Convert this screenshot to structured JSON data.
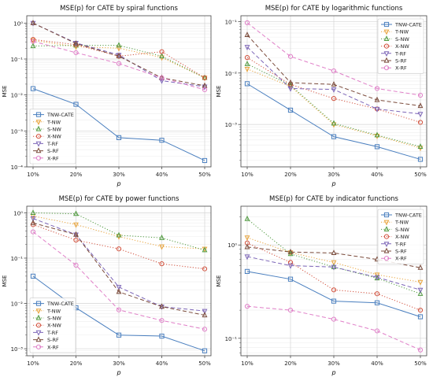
{
  "figure": {
    "series_styles": [
      {
        "name": "TNW-CATE",
        "color": "#4a7fbf",
        "dash": "solid",
        "marker": "square"
      },
      {
        "name": "T-NW",
        "color": "#e8a33a",
        "dash": "dotted",
        "marker": "tri-down"
      },
      {
        "name": "S-NW",
        "color": "#4f9a3e",
        "dash": "dotted",
        "marker": "tri-up"
      },
      {
        "name": "X-NW",
        "color": "#d2503c",
        "dash": "dotted",
        "marker": "circle"
      },
      {
        "name": "T-RF",
        "color": "#7d66b8",
        "dash": "dashed",
        "marker": "tri-down"
      },
      {
        "name": "S-RF",
        "color": "#7a4a3a",
        "dash": "dashed",
        "marker": "tri-up"
      },
      {
        "name": "X-RF",
        "color": "#e07fc8",
        "dash": "dashed",
        "marker": "circle"
      }
    ]
  },
  "chart_data": [
    {
      "type": "line",
      "title": "MSE(p) for CATE by spiral functions",
      "xlabel": "p",
      "ylabel": "MSE",
      "yscale": "log",
      "ylim": [
        0.0001,
        1.6
      ],
      "yticks": [
        {
          "v": 0.0001,
          "label": "10⁻⁴"
        },
        {
          "v": 0.001,
          "label": "10⁻³"
        },
        {
          "v": 0.01,
          "label": "10⁻²"
        },
        {
          "v": 0.1,
          "label": "10⁻¹"
        },
        {
          "v": 1,
          "label": "10⁰"
        }
      ],
      "categories": [
        "10%",
        "20%",
        "30%",
        "40%",
        "50%"
      ],
      "legend": "lower-left",
      "grid": true,
      "series": [
        {
          "name": "TNW-CATE",
          "values": [
            0.015,
            0.0055,
            0.00065,
            0.00055,
            0.00015
          ]
        },
        {
          "name": "T-NW",
          "values": [
            0.33,
            0.22,
            0.2,
            0.11,
            0.03
          ]
        },
        {
          "name": "S-NW",
          "values": [
            0.23,
            0.24,
            0.24,
            0.12,
            0.03
          ]
        },
        {
          "name": "X-NW",
          "values": [
            0.35,
            0.25,
            0.12,
            0.16,
            0.03
          ]
        },
        {
          "name": "T-RF",
          "values": [
            1.0,
            0.28,
            0.13,
            0.025,
            0.017
          ]
        },
        {
          "name": "S-RF",
          "values": [
            1.0,
            0.27,
            0.12,
            0.03,
            0.018
          ]
        },
        {
          "name": "X-RF",
          "values": [
            0.31,
            0.15,
            0.075,
            0.03,
            0.014
          ]
        }
      ]
    },
    {
      "type": "line",
      "title": "MSE(p) for CATE by logarithmic functions",
      "xlabel": "p",
      "ylabel": "MSE",
      "yscale": "log",
      "ylim": [
        0.00015,
        0.13
      ],
      "yticks": [
        {
          "v": 0.001,
          "label": "10⁻³"
        },
        {
          "v": 0.01,
          "label": "10⁻²"
        },
        {
          "v": 0.1,
          "label": "10⁻¹"
        }
      ],
      "categories": [
        "10%",
        "20%",
        "30%",
        "40%",
        "50%"
      ],
      "legend": "top-right",
      "grid": true,
      "series": [
        {
          "name": "TNW-CATE",
          "values": [
            0.0062,
            0.0019,
            0.00058,
            0.00037,
            0.00021
          ]
        },
        {
          "name": "T-NW",
          "values": [
            0.012,
            0.0055,
            0.001,
            0.0006,
            0.00035
          ]
        },
        {
          "name": "S-NW",
          "values": [
            0.015,
            0.0058,
            0.00105,
            0.00062,
            0.00037
          ]
        },
        {
          "name": "X-NW",
          "values": [
            0.02,
            0.006,
            0.0032,
            0.002,
            0.0011
          ]
        },
        {
          "name": "T-RF",
          "values": [
            0.032,
            0.005,
            0.0048,
            0.002,
            0.0016
          ]
        },
        {
          "name": "S-RF",
          "values": [
            0.055,
            0.0065,
            0.006,
            0.003,
            0.0023
          ]
        },
        {
          "name": "X-RF",
          "values": [
            0.095,
            0.021,
            0.011,
            0.005,
            0.0037
          ]
        }
      ]
    },
    {
      "type": "line",
      "title": "MSE(p) for CATE by power functions",
      "xlabel": "p",
      "ylabel": "MSE",
      "yscale": "log",
      "ylim": [
        0.0007,
        1.4
      ],
      "yticks": [
        {
          "v": 0.001,
          "label": "10⁻³"
        },
        {
          "v": 0.01,
          "label": "10⁻²"
        },
        {
          "v": 0.1,
          "label": "10⁻¹"
        },
        {
          "v": 1,
          "label": "10⁰"
        }
      ],
      "categories": [
        "10%",
        "20%",
        "30%",
        "40%",
        "50%"
      ],
      "legend": "lower-left",
      "grid": true,
      "series": [
        {
          "name": "TNW-CATE",
          "values": [
            0.04,
            0.008,
            0.002,
            0.0019,
            0.0009
          ]
        },
        {
          "name": "T-NW",
          "values": [
            0.85,
            0.55,
            0.3,
            0.18,
            0.16
          ]
        },
        {
          "name": "S-NW",
          "values": [
            1.0,
            0.95,
            0.32,
            0.28,
            0.15
          ]
        },
        {
          "name": "X-NW",
          "values": [
            0.55,
            0.25,
            0.16,
            0.075,
            0.058
          ]
        },
        {
          "name": "T-RF",
          "values": [
            0.75,
            0.33,
            0.023,
            0.0085,
            0.0068
          ]
        },
        {
          "name": "S-RF",
          "values": [
            0.6,
            0.33,
            0.018,
            0.0085,
            0.0055
          ]
        },
        {
          "name": "X-RF",
          "values": [
            0.38,
            0.07,
            0.0072,
            0.0042,
            0.0027
          ]
        }
      ]
    },
    {
      "type": "line",
      "title": "MSE(p) for CATE by indicator functions",
      "xlabel": "p",
      "ylabel": "MSE",
      "yscale": "log",
      "ylim": [
        0.065,
        2.6
      ],
      "yticks": [
        {
          "v": 0.1,
          "label": "10⁻¹"
        },
        {
          "v": 1,
          "label": "10⁰"
        }
      ],
      "categories": [
        "10%",
        "20%",
        "30%",
        "40%",
        "50%"
      ],
      "legend": "top-right",
      "grid": true,
      "series": [
        {
          "name": "TNW-CATE",
          "values": [
            0.52,
            0.43,
            0.25,
            0.24,
            0.17
          ]
        },
        {
          "name": "T-NW",
          "values": [
            1.2,
            0.83,
            0.65,
            0.48,
            0.4
          ]
        },
        {
          "name": "S-NW",
          "values": [
            1.9,
            0.8,
            0.58,
            0.44,
            0.3
          ]
        },
        {
          "name": "X-NW",
          "values": [
            1.05,
            0.65,
            0.33,
            0.3,
            0.2
          ]
        },
        {
          "name": "T-RF",
          "values": [
            0.75,
            0.6,
            0.58,
            0.45,
            0.33
          ]
        },
        {
          "name": "S-RF",
          "values": [
            0.95,
            0.84,
            0.82,
            0.7,
            0.57
          ]
        },
        {
          "name": "X-RF",
          "values": [
            0.22,
            0.2,
            0.16,
            0.12,
            0.075
          ]
        }
      ]
    }
  ]
}
